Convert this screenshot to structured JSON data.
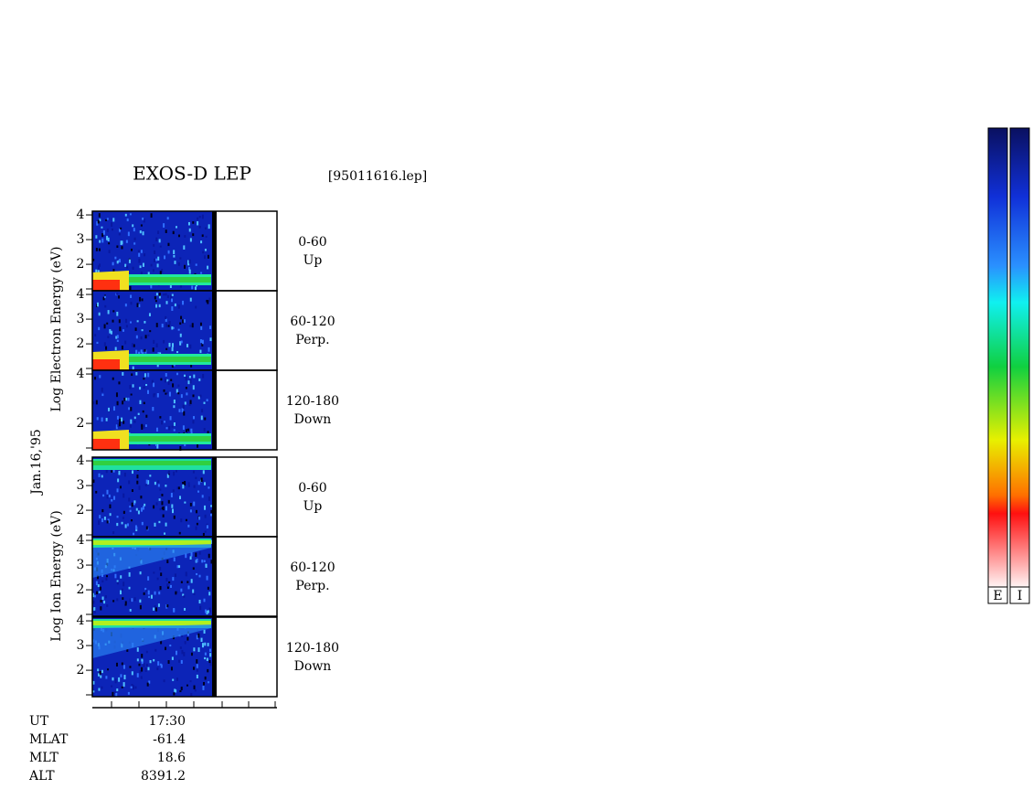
{
  "title": "EXOS-D LEP",
  "file_name": "[95011616.lep]",
  "date": "Jan.16,'95",
  "electron_axis_label": "Log  Electron  Energy (eV)",
  "ion_axis_label": "Log  Ion  Energy (eV)",
  "ylim": [
    0.93,
    4.15
  ],
  "electron_panels": [
    {
      "angle": "0-60",
      "direction": "Up",
      "yticks": [
        2,
        3,
        4
      ]
    },
    {
      "angle": "60-120",
      "direction": "Perp.",
      "yticks": [
        2,
        3,
        4
      ]
    },
    {
      "angle": "120-180",
      "direction": "Down",
      "yticks": [
        2,
        4
      ]
    }
  ],
  "ion_panels": [
    {
      "angle": "0-60",
      "direction": "Up",
      "yticks": [
        2,
        3,
        4
      ]
    },
    {
      "angle": "60-120",
      "direction": "Perp.",
      "yticks": [
        2,
        3,
        4
      ]
    },
    {
      "angle": "120-180",
      "direction": "Down",
      "yticks": [
        2,
        3,
        4
      ]
    }
  ],
  "orbit": [
    {
      "label": "UT",
      "value": "17:30"
    },
    {
      "label": "MLAT",
      "value": -61.4
    },
    {
      "label": "MLT",
      "value": 18.6
    },
    {
      "label": "ALT",
      "value": 8391.2
    }
  ],
  "colorbars": [
    "E",
    "I"
  ]
}
